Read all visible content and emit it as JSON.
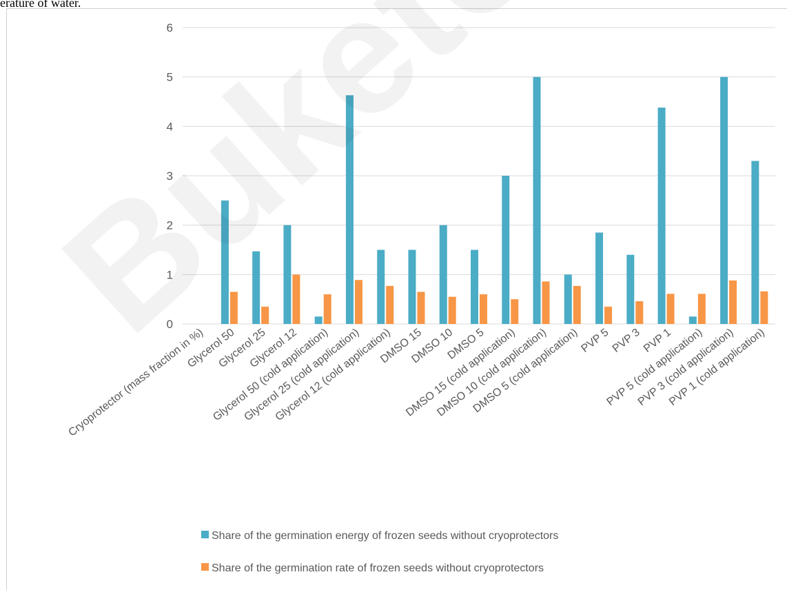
{
  "caption": "erature of water.",
  "watermark": "Buketov Un",
  "colors": {
    "series1": "#4bacc6",
    "series2": "#f79646",
    "grid": "#d9d9d9",
    "text": "#595959"
  },
  "chart_data": {
    "type": "bar",
    "title": "",
    "xlabel": "",
    "ylabel": "",
    "ylim": [
      0,
      6
    ],
    "yticks": [
      0,
      1,
      2,
      3,
      4,
      5,
      6
    ],
    "grid": true,
    "legend_position": "bottom",
    "categories": [
      "Cryoprotector (mass fraction in %)",
      "Glycerol 50",
      "Glycerol  25",
      "Glycerol  12",
      "Glycerol  50 (cold application)",
      "Glycerol  25 (cold application)",
      "Glycerol  12 (cold application)",
      "DMSO 15",
      "DMSO 10",
      "DMSO 5",
      "DMSO 15 (cold application)",
      "DMSO 10 (cold application)",
      "DMSO 5 (cold application)",
      "PVP 5",
      "PVP 3",
      "PVP 1",
      "PVP 5 (cold application)",
      "PVP 3 (cold application)",
      "PVP 1 (cold application)"
    ],
    "series": [
      {
        "name": "Share  of the germination energy of frozen seeds  without cryoprotectors",
        "values": [
          null,
          2.5,
          1.47,
          2.0,
          0.15,
          4.63,
          1.5,
          1.5,
          2.0,
          1.5,
          3.0,
          5.0,
          1.0,
          1.85,
          1.4,
          4.38,
          0.15,
          5.0,
          3.3
        ]
      },
      {
        "name": "Share  of the germination rate of frozen seeds without cryoprotectors",
        "values": [
          null,
          0.65,
          0.35,
          1.0,
          0.6,
          0.89,
          0.77,
          0.65,
          0.55,
          0.6,
          0.5,
          0.86,
          0.77,
          0.35,
          0.46,
          0.61,
          0.61,
          0.88,
          0.66
        ]
      }
    ]
  }
}
